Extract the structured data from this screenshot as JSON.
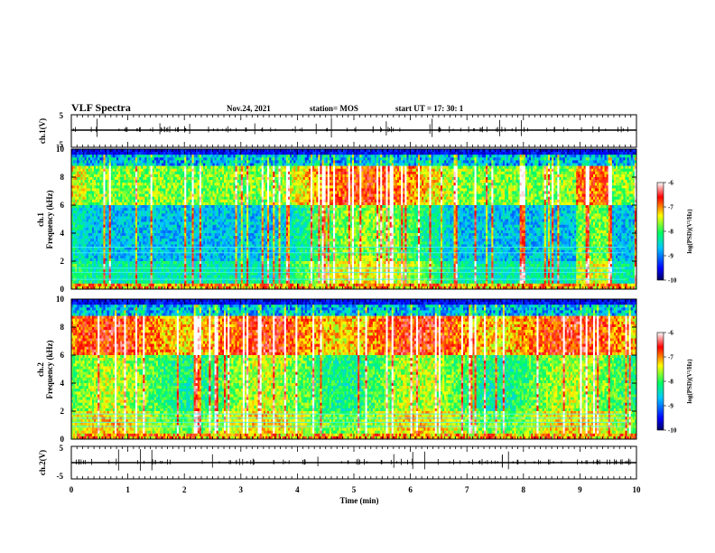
{
  "header": {
    "title": "VLF Spectra",
    "date": "Nov.24, 2021",
    "station": "station= MOS",
    "start": "start  UT =   17: 30: 1"
  },
  "chart_data": {
    "type": "heatmap",
    "xlabel": "Time  (min)",
    "xlim": [
      0,
      10
    ],
    "xticks": [
      "0",
      "1",
      "2",
      "3",
      "4",
      "5",
      "6",
      "7",
      "8",
      "9",
      "10"
    ],
    "panels": [
      {
        "ylabel": "ch.1(V)",
        "ylim": [
          -5,
          5
        ],
        "yticks": [
          "5",
          "-5"
        ],
        "kind": "waveform"
      },
      {
        "ylabel": "ch.1\nFrequency  (kHz)",
        "ylim": [
          0,
          10
        ],
        "yticks": [
          "0",
          "2",
          "4",
          "6",
          "8",
          "10"
        ],
        "kind": "spectrogram"
      },
      {
        "ylabel": "ch.2\nFrequency  (kHz)",
        "ylim": [
          0,
          10
        ],
        "yticks": [
          "0",
          "2",
          "4",
          "6",
          "8",
          "10"
        ],
        "kind": "spectrogram"
      },
      {
        "ylabel": "ch.2(V)",
        "ylim": [
          -5,
          5
        ],
        "yticks": [
          "5",
          "-5"
        ],
        "kind": "waveform"
      }
    ],
    "colorbar": {
      "label": "log(PSD)(V²/Hz)",
      "range": [
        -10,
        -6
      ],
      "ticks": [
        "-6",
        "-7",
        "-8",
        "-9",
        "-10"
      ],
      "colormap": [
        "#000060",
        "#0000ff",
        "#00c8ff",
        "#00ff64",
        "#ffff00",
        "#ff0000",
        "#ffffff"
      ]
    }
  }
}
